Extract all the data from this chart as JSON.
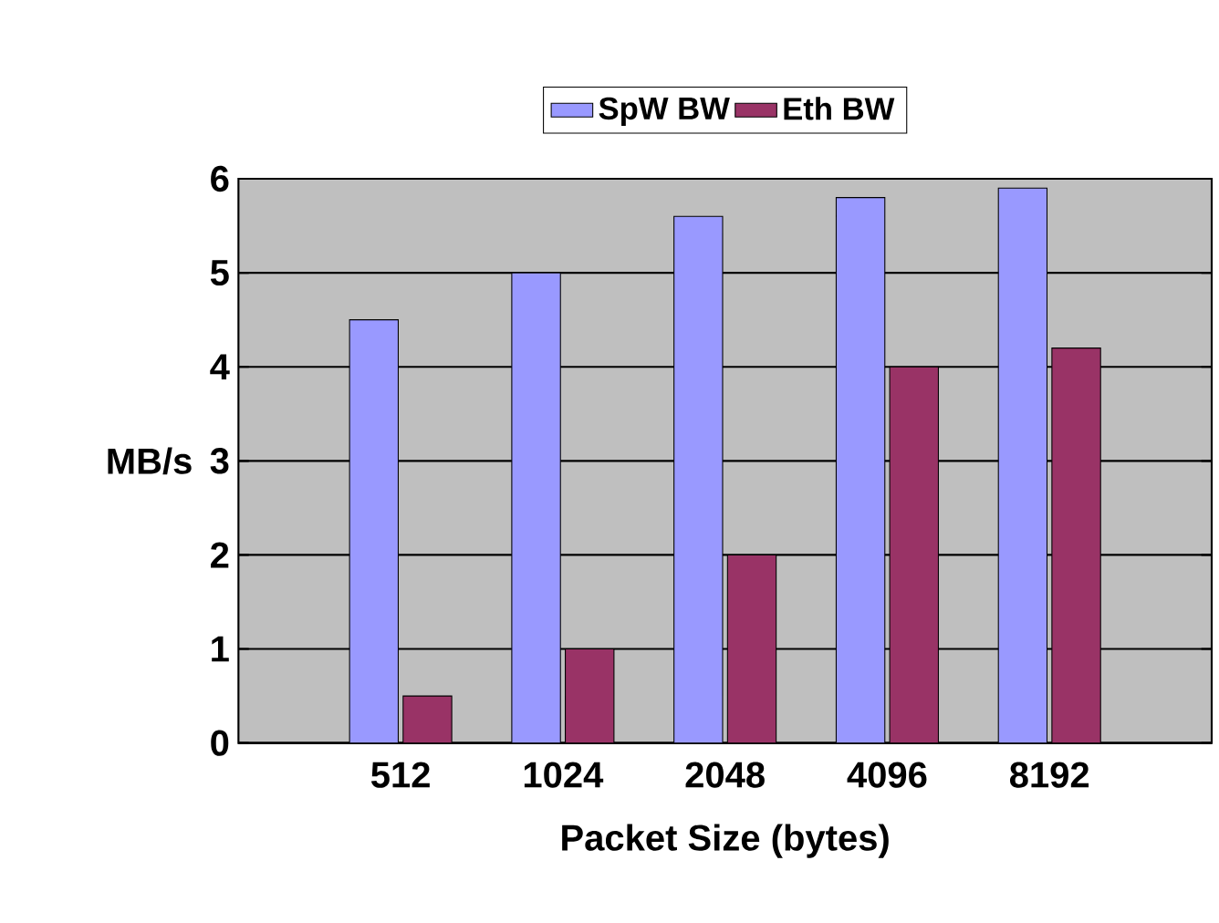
{
  "chart_data": {
    "type": "bar",
    "categories": [
      "512",
      "1024",
      "2048",
      "4096",
      "8192"
    ],
    "series": [
      {
        "name": "SpW BW",
        "color": "#9999ff",
        "values": [
          4.5,
          5.0,
          5.6,
          5.8,
          5.9
        ]
      },
      {
        "name": "Eth BW",
        "color": "#993366",
        "values": [
          0.5,
          1.0,
          2.0,
          4.0,
          4.2
        ]
      }
    ],
    "xlabel": "Packet Size (bytes)",
    "ylabel": "MB/s",
    "ylim": [
      0,
      6
    ],
    "yticks": [
      0,
      1,
      2,
      3,
      4,
      5,
      6
    ],
    "grid": "y",
    "legend": "top"
  }
}
